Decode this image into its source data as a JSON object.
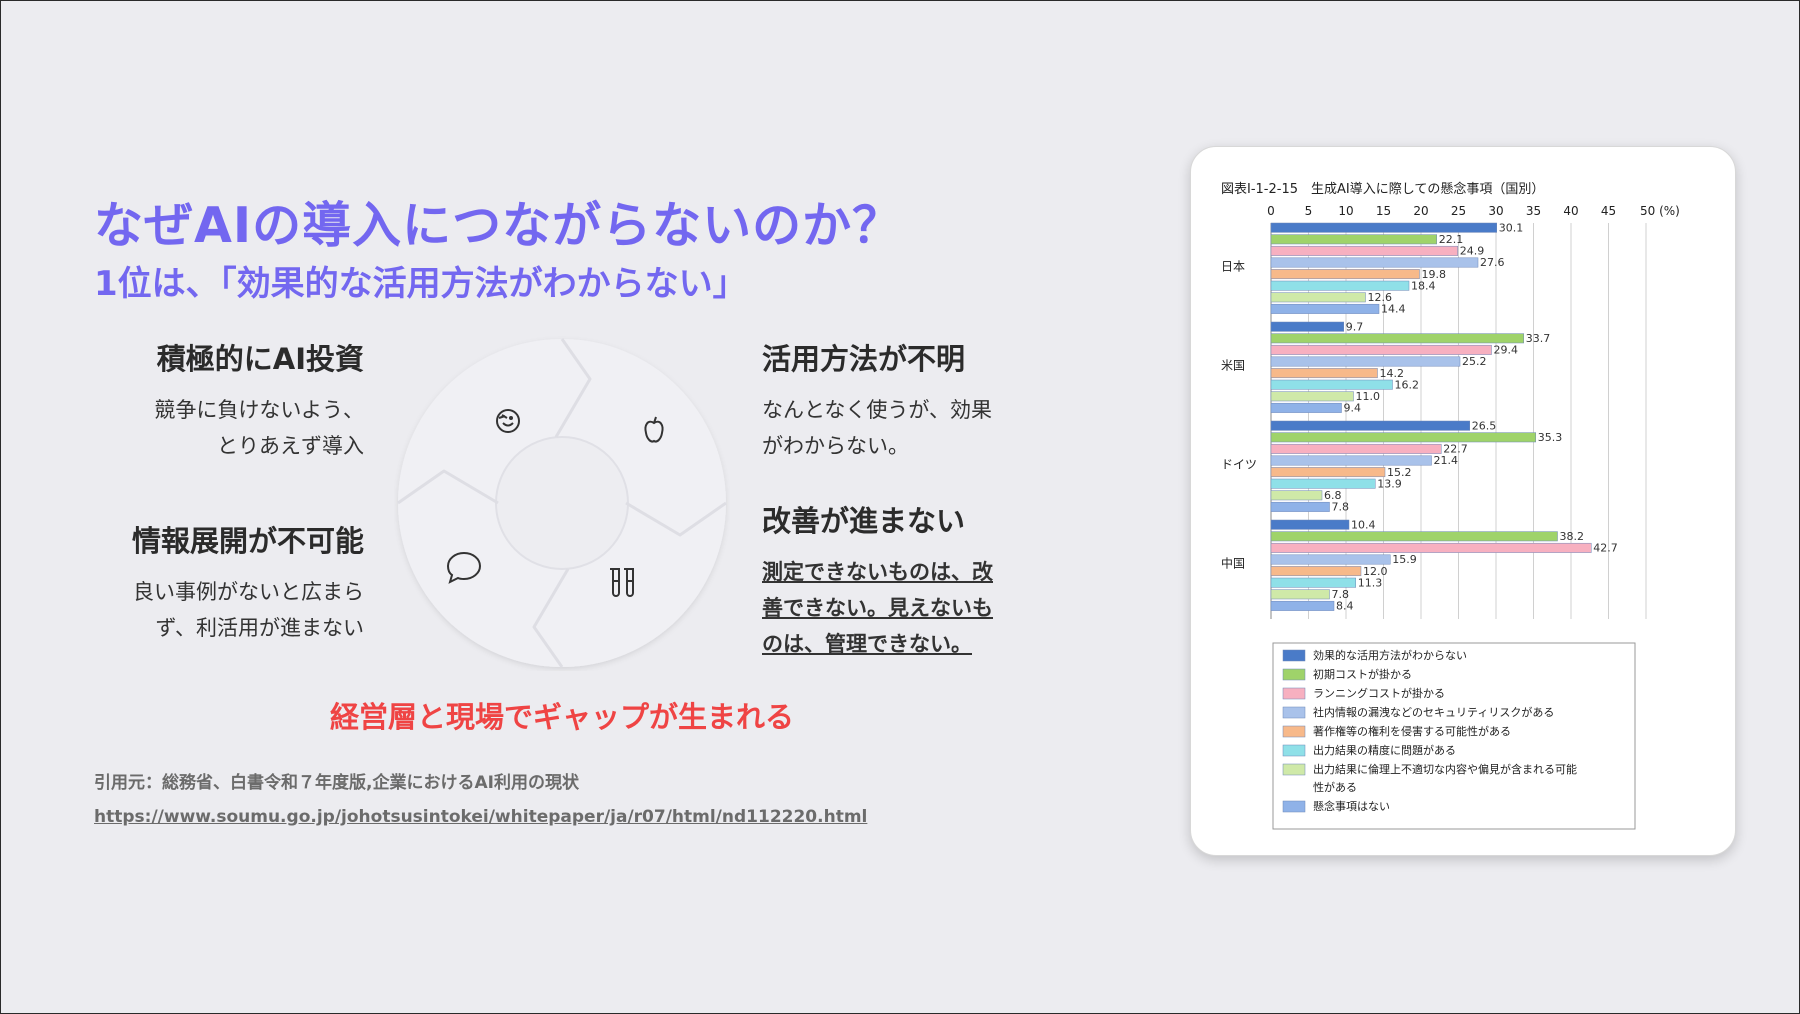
{
  "heading": {
    "title": "なぜAIの導入につながらないのか？",
    "subtitle": "1位は、「効果的な活用方法がわからない」"
  },
  "quadrants": {
    "top_left": {
      "title": "積極的にAI投資",
      "line1": "競争に負けないよう、",
      "line2": "とりあえず導入"
    },
    "bottom_left": {
      "title": "情報展開が不可能",
      "line1": "良い事例がないと広まら",
      "line2": "ず、利活用が進まない"
    },
    "top_right": {
      "title": "活用方法が不明",
      "line1": "なんとなく使うが、効果",
      "line2": "がわからない。"
    },
    "bottom_right": {
      "title": "改善が進まない",
      "line1": "測定できないものは、改",
      "line2": "善できない。見えないも",
      "line3": "のは、管理できない。"
    }
  },
  "gap_statement": "経営層と現場でギャップが生まれる",
  "citation": {
    "source": "引用元：総務省、白書令和７年度版,企業におけるAI利用の現状",
    "url": "https://www.soumu.go.jp/johotsusintokei/whitepaper/ja/r07/html/nd112220.html"
  },
  "cycle_icons": [
    "face-icon",
    "apple-icon",
    "chat-bubble-icon",
    "test-tubes-icon"
  ],
  "chart_data": {
    "type": "bar",
    "orientation": "horizontal",
    "title": "図表Ⅰ-1-2-15　生成AI導入に際しての懸念事項（国別）",
    "x_ticks": [
      "0",
      "5",
      "10",
      "15",
      "20",
      "25",
      "30",
      "35",
      "40",
      "45",
      "50 (%)"
    ],
    "xlim": [
      0,
      50
    ],
    "categories": [
      "日本",
      "米国",
      "ドイツ",
      "中国"
    ],
    "legend_position": "bottom",
    "series": [
      {
        "name": "効果的な活用方法がわからない",
        "color": "#4a7bc8",
        "values": [
          30.1,
          9.7,
          26.5,
          10.4
        ]
      },
      {
        "name": "初期コストが掛かる",
        "color": "#9fd36a",
        "values": [
          22.1,
          33.7,
          35.3,
          38.2
        ]
      },
      {
        "name": "ランニングコストが掛かる",
        "color": "#f7b0c0",
        "values": [
          24.9,
          29.4,
          22.7,
          42.7
        ]
      },
      {
        "name": "社内情報の漏洩などのセキュリティリスクがある",
        "color": "#a9c2ea",
        "values": [
          27.6,
          25.2,
          21.4,
          15.9
        ]
      },
      {
        "name": "著作権等の権利を侵害する可能性がある",
        "color": "#f7b98a",
        "values": [
          19.8,
          14.2,
          15.2,
          12.0
        ]
      },
      {
        "name": "出力結果の精度に問題がある",
        "color": "#8fe0e8",
        "values": [
          18.4,
          16.2,
          13.9,
          11.3
        ]
      },
      {
        "name": "出力結果に倫理上不適切な内容や偏見が含まれる可能性がある",
        "color": "#cfe9a8",
        "values": [
          12.6,
          11.0,
          6.8,
          7.8
        ]
      },
      {
        "name": "懸念事項はない",
        "color": "#8fb2e8",
        "values": [
          14.4,
          9.4,
          7.8,
          8.4
        ]
      }
    ],
    "value_labels": [
      [
        "30.1",
        "22.1",
        "24.9",
        "27.6",
        "19.8",
        "18.4",
        "12.6",
        "14.4"
      ],
      [
        "9.7",
        "33.7",
        "29.4",
        "25.2",
        "14.2",
        "16.2",
        "11.0",
        "9.4"
      ],
      [
        "26.5",
        "35.3",
        "22.7",
        "21.4",
        "15.2",
        "13.9",
        "6.8",
        "7.8"
      ],
      [
        "10.4",
        "38.2",
        "42.7",
        "15.9",
        "12.0",
        "11.3",
        "7.8",
        "8.4"
      ]
    ]
  }
}
